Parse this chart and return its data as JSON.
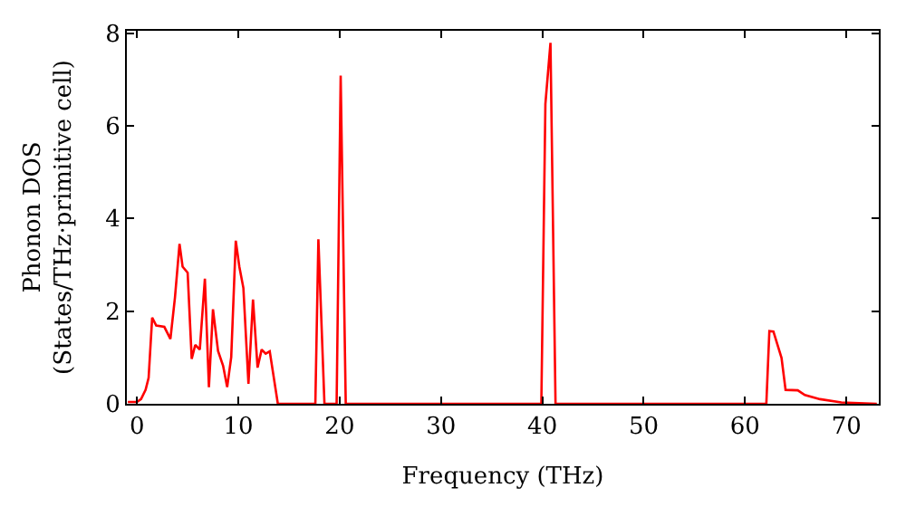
{
  "chart_data": {
    "type": "line",
    "xlabel": "Frequency (THz)",
    "ylabel": "Phonon DOS\n(States/THz·primitive cell)",
    "x": [
      -0.9,
      0,
      0.4,
      0.85,
      1.15,
      1.5,
      1.9,
      2.7,
      3.3,
      3.75,
      4.2,
      4.5,
      5.0,
      5.4,
      5.75,
      6.2,
      6.7,
      7.1,
      7.5,
      8.0,
      8.5,
      8.9,
      9.3,
      9.75,
      10.1,
      10.5,
      11.0,
      11.45,
      11.9,
      12.3,
      12.7,
      13.1,
      13.9,
      17.6,
      17.9,
      18.5,
      19.7,
      20.1,
      20.6,
      39.9,
      40.3,
      40.8,
      41.3,
      62.1,
      62.4,
      62.8,
      63.6,
      64.0,
      65.2,
      65.9,
      67.4,
      69.5,
      73
    ],
    "series": [
      {
        "color": "#ff0000",
        "values": [
          0.04,
          0.04,
          0.1,
          0.3,
          0.56,
          1.86,
          1.69,
          1.66,
          1.4,
          2.3,
          3.45,
          2.96,
          2.83,
          0.97,
          1.27,
          1.17,
          2.7,
          0.36,
          2.04,
          1.14,
          0.82,
          0.36,
          1.01,
          3.52,
          2.96,
          2.5,
          0.43,
          2.25,
          0.78,
          1.17,
          1.08,
          1.13,
          0,
          0,
          3.55,
          0,
          0,
          7.08,
          0,
          0,
          6.47,
          7.79,
          0,
          0,
          1.57,
          1.56,
          0.99,
          0.3,
          0.29,
          0.19,
          0.1,
          0.03,
          0
        ]
      }
    ],
    "xlim": [
      -1,
      73.2
    ],
    "ylim": [
      0,
      8.05
    ],
    "xticks": [
      0,
      10,
      20,
      30,
      40,
      50,
      60,
      70
    ],
    "yticks": [
      0,
      2,
      4,
      6,
      8
    ],
    "marker": "none",
    "line_style": "solid"
  }
}
